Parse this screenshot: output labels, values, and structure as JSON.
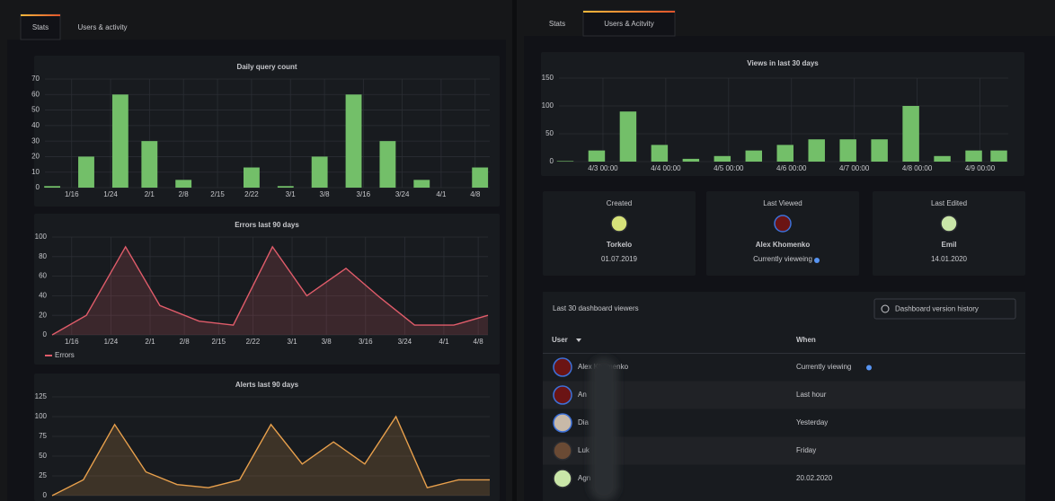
{
  "left": {
    "tabs": [
      "Stats",
      "Users & activity"
    ],
    "active": 0,
    "charts": [
      {
        "type": "bar",
        "title": "Daily query count",
        "x": [
          12,
          19,
          26,
          32,
          39,
          46,
          53,
          60,
          67,
          74,
          81,
          88,
          95,
          100
        ],
        "values": [
          1,
          20,
          60,
          30,
          5,
          0,
          13,
          1,
          20,
          60,
          30,
          5,
          0,
          13
        ],
        "color": "#73bf69",
        "xlim": [
          10.5,
          102
        ],
        "ylim": [
          0,
          70
        ],
        "yticks": [
          0,
          10,
          20,
          30,
          40,
          50,
          60,
          70
        ],
        "xticks": [
          {
            "value": 16,
            "label": "1/16"
          },
          {
            "value": 24,
            "label": "1/24"
          },
          {
            "value": 32,
            "label": "2/1"
          },
          {
            "value": 39,
            "label": "2/8"
          },
          {
            "value": 46,
            "label": "2/15"
          },
          {
            "value": 53,
            "label": "2/22"
          },
          {
            "value": 61,
            "label": "3/1"
          },
          {
            "value": 68,
            "label": "3/8"
          },
          {
            "value": 76,
            "label": "3/16"
          },
          {
            "value": 84,
            "label": "3/24"
          },
          {
            "value": 92,
            "label": "4/1"
          },
          {
            "value": 99,
            "label": "4/8"
          }
        ],
        "grid": true
      },
      {
        "type": "line",
        "title": "Errors last 90 days",
        "x": [
          12,
          19,
          27,
          34,
          42,
          49,
          57,
          64,
          72,
          79,
          86,
          94,
          101
        ],
        "series": [
          {
            "name": "Errors",
            "color": "#e05c6a",
            "values": [
              0,
              20,
              90,
              30,
              14,
              10,
              90,
              40,
              68,
              38,
              10,
              10,
              20
            ]
          }
        ],
        "xlim": [
          12,
          101
        ],
        "ylim": [
          0,
          100
        ],
        "yticks": [
          0,
          20,
          40,
          60,
          80,
          100
        ],
        "xticks": [
          {
            "value": 16,
            "label": "1/16"
          },
          {
            "value": 24,
            "label": "1/24"
          },
          {
            "value": 32,
            "label": "2/1"
          },
          {
            "value": 39,
            "label": "2/8"
          },
          {
            "value": 46,
            "label": "2/15"
          },
          {
            "value": 53,
            "label": "2/22"
          },
          {
            "value": 61,
            "label": "3/1"
          },
          {
            "value": 68,
            "label": "3/8"
          },
          {
            "value": 76,
            "label": "3/16"
          },
          {
            "value": 84,
            "label": "3/24"
          },
          {
            "value": 92,
            "label": "4/1"
          },
          {
            "value": 99,
            "label": "4/8"
          }
        ],
        "grid": true,
        "legend": "bottom-left"
      },
      {
        "type": "line",
        "title": "Alerts last 90 days",
        "categories": [
          null,
          null,
          null,
          null,
          null,
          null,
          null,
          null,
          null,
          null,
          null,
          null,
          null,
          null,
          null
        ],
        "values": [
          0,
          20,
          90,
          30,
          14,
          10,
          20,
          90,
          40,
          68,
          40,
          100,
          10,
          20,
          20
        ],
        "color": "#e8a04c",
        "ylim": [
          0,
          125
        ],
        "yticks": [
          0,
          25,
          50,
          75,
          100,
          125
        ],
        "grid": true
      }
    ]
  },
  "right": {
    "tabs": [
      "Stats",
      "Users & Acitvity"
    ],
    "active": 1,
    "chart": {
      "type": "bar",
      "title": "Views in last 30 days",
      "x": [
        2.4,
        2.9,
        3.4,
        3.9,
        4.4,
        4.9,
        5.4,
        5.9,
        6.4,
        6.9,
        7.4,
        7.9,
        8.4,
        8.9,
        9.3
      ],
      "values": [
        1,
        20,
        90,
        30,
        5,
        10,
        20,
        30,
        40,
        40,
        40,
        100,
        10,
        20,
        20
      ],
      "color": "#73bf69",
      "xlim": [
        2.3,
        9.45
      ],
      "ylim": [
        0,
        150
      ],
      "yticks": [
        0,
        50,
        100,
        150
      ],
      "xticks": [
        {
          "value": 3,
          "label": "4/3 00:00"
        },
        {
          "value": 4,
          "label": "4/4 00:00"
        },
        {
          "value": 5,
          "label": "4/5 00:00"
        },
        {
          "value": 6,
          "label": "4/6 00:00"
        },
        {
          "value": 7,
          "label": "4/7 00:00"
        },
        {
          "value": 8,
          "label": "4/8 00:00"
        },
        {
          "value": 9,
          "label": "4/9 00:00"
        }
      ],
      "grid": true
    },
    "cards": [
      {
        "title": "Created",
        "name": "Torkelo",
        "detail": "01.07.2019"
      },
      {
        "title": "Last Viewed",
        "name": "Alex Khomenko",
        "detail": "Currently vieweing"
      },
      {
        "title": "Last Edited",
        "name": "Emil",
        "detail": "14.01.2020"
      }
    ],
    "table": {
      "title": "Last 30 dashboard viewers",
      "button": "Dashboard version history",
      "columns": [
        "User",
        "When"
      ],
      "rows": [
        [
          "Alex Khomenko",
          "Currently viewing"
        ],
        [
          "An",
          "Last hour"
        ],
        [
          "Dia",
          "Yesterday"
        ],
        [
          "Luk",
          "Friday"
        ],
        [
          "Agn",
          "20.02.2020"
        ]
      ]
    }
  }
}
